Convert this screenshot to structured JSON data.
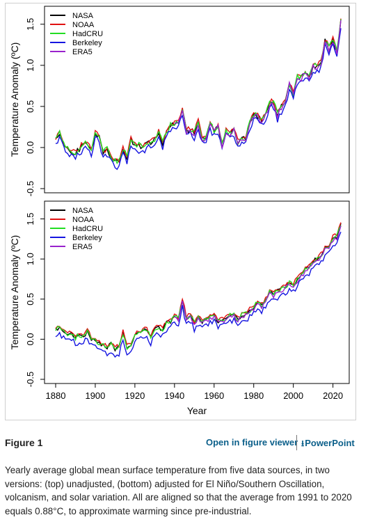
{
  "figure": {
    "label": "Figure 1",
    "open_viewer": "Open in figure viewer",
    "powerpoint": "PowerPoint",
    "download_icon": "download-icon",
    "caption": "Yearly average global mean surface temperature from five data sources, in two versions: (top) unadjusted, (bottom) adjusted for El Niño/Southern Oscillation, volcanism, and solar variation. All are aligned so that the average from 1991 to 2020 equals 0.88°C, to approximate warming since pre-industrial."
  },
  "chart_data": [
    {
      "type": "line",
      "title": "",
      "xlabel": "",
      "ylabel": "Temperature Anomaly (ºC)",
      "xlim": [
        1880,
        2024
      ],
      "ylim": [
        -0.5,
        1.6
      ],
      "yticks": [
        "-0.5",
        "0.0",
        "0.5",
        "1.0",
        "1.5"
      ],
      "grid": false,
      "legend": "top-left",
      "anchors": {
        "x": [
          1880,
          1882,
          1884,
          1886,
          1888,
          1890,
          1892,
          1894,
          1896,
          1898,
          1900,
          1902,
          1904,
          1906,
          1908,
          1910,
          1912,
          1914,
          1916,
          1918,
          1920,
          1922,
          1924,
          1926,
          1928,
          1930,
          1932,
          1934,
          1936,
          1938,
          1940,
          1942,
          1944,
          1946,
          1948,
          1950,
          1952,
          1954,
          1956,
          1958,
          1960,
          1962,
          1964,
          1966,
          1968,
          1970,
          1972,
          1974,
          1976,
          1978,
          1980,
          1982,
          1984,
          1986,
          1988,
          1990,
          1992,
          1994,
          1996,
          1998,
          2000,
          2002,
          2004,
          2006,
          2008,
          2010,
          2012,
          2014,
          2016,
          2018,
          2020,
          2022,
          2024
        ],
        "y": [
          0.1,
          0.16,
          0.05,
          -0.02,
          -0.05,
          -0.06,
          -0.02,
          0.04,
          0.05,
          -0.04,
          0.18,
          0.12,
          -0.08,
          -0.02,
          -0.12,
          -0.18,
          -0.18,
          -0.02,
          -0.12,
          0.1,
          0.02,
          0.02,
          0.0,
          0.05,
          0.06,
          0.1,
          0.18,
          0.05,
          0.18,
          0.26,
          0.28,
          0.3,
          0.48,
          0.2,
          0.22,
          0.18,
          0.3,
          0.1,
          0.12,
          0.28,
          0.2,
          0.26,
          0.02,
          0.2,
          0.16,
          0.22,
          0.06,
          0.12,
          0.1,
          0.3,
          0.4,
          0.38,
          0.32,
          0.4,
          0.54,
          0.55,
          0.4,
          0.5,
          0.58,
          0.78,
          0.65,
          0.85,
          0.85,
          0.92,
          0.84,
          1.0,
          0.98,
          1.04,
          1.3,
          1.2,
          1.3,
          1.15,
          1.55
        ]
      },
      "series": [
        {
          "name": "NASA",
          "color": "#000000",
          "start": 1880,
          "offset": 0.0,
          "amp": 0.03,
          "seed": 1
        },
        {
          "name": "NOAA",
          "color": "#e01010",
          "start": 1880,
          "offset": 0.02,
          "amp": 0.03,
          "seed": 2
        },
        {
          "name": "HadCRU",
          "color": "#22dd22",
          "start": 1880,
          "offset": 0.01,
          "amp": 0.035,
          "seed": 3
        },
        {
          "name": "Berkeley",
          "color": "#1515e0",
          "start": 1880,
          "offset": -0.06,
          "amp": 0.04,
          "seed": 4
        },
        {
          "name": "ERA5",
          "color": "#9922cc",
          "start": 1940,
          "offset": -0.01,
          "amp": 0.03,
          "seed": 5
        }
      ]
    },
    {
      "type": "line",
      "title": "",
      "xlabel": "Year",
      "ylabel": "Temperature Anomaly (ºC)",
      "xlim": [
        1880,
        2024
      ],
      "ylim": [
        -0.5,
        1.6
      ],
      "xticks": [
        "1880",
        "1900",
        "1920",
        "1940",
        "1960",
        "1980",
        "2000",
        "2020"
      ],
      "yticks": [
        "-0.5",
        "0.0",
        "0.5",
        "1.0",
        "1.5"
      ],
      "grid": false,
      "legend": "top-left",
      "anchors": {
        "x": [
          1880,
          1882,
          1884,
          1886,
          1888,
          1890,
          1892,
          1894,
          1896,
          1898,
          1900,
          1902,
          1904,
          1906,
          1908,
          1910,
          1912,
          1914,
          1916,
          1918,
          1920,
          1922,
          1924,
          1926,
          1928,
          1930,
          1932,
          1934,
          1936,
          1938,
          1940,
          1942,
          1944,
          1946,
          1948,
          1950,
          1952,
          1954,
          1956,
          1958,
          1960,
          1962,
          1964,
          1966,
          1968,
          1970,
          1972,
          1974,
          1976,
          1978,
          1980,
          1982,
          1984,
          1986,
          1988,
          1990,
          1992,
          1994,
          1996,
          1998,
          2000,
          2002,
          2004,
          2006,
          2008,
          2010,
          2012,
          2014,
          2016,
          2018,
          2020,
          2022,
          2024
        ],
        "y": [
          0.12,
          0.14,
          0.1,
          0.06,
          0.08,
          0.02,
          0.05,
          0.03,
          0.1,
          0.0,
          -0.02,
          -0.05,
          -0.08,
          -0.1,
          -0.06,
          -0.12,
          -0.1,
          0.08,
          -0.1,
          -0.08,
          0.05,
          0.08,
          0.1,
          0.12,
          0.02,
          0.12,
          0.15,
          0.12,
          0.2,
          0.22,
          0.3,
          0.25,
          0.5,
          0.25,
          0.3,
          0.2,
          0.28,
          0.22,
          0.25,
          0.28,
          0.3,
          0.22,
          0.24,
          0.25,
          0.3,
          0.32,
          0.24,
          0.3,
          0.32,
          0.36,
          0.4,
          0.46,
          0.42,
          0.48,
          0.58,
          0.56,
          0.6,
          0.62,
          0.66,
          0.7,
          0.68,
          0.74,
          0.8,
          0.86,
          0.9,
          0.98,
          1.0,
          1.04,
          1.14,
          1.16,
          1.26,
          1.28,
          1.44
        ]
      },
      "series": [
        {
          "name": "NASA",
          "color": "#000000",
          "start": 1880,
          "offset": 0.0,
          "amp": 0.025,
          "seed": 6
        },
        {
          "name": "NOAA",
          "color": "#e01010",
          "start": 1880,
          "offset": 0.02,
          "amp": 0.025,
          "seed": 7
        },
        {
          "name": "HadCRU",
          "color": "#22dd22",
          "start": 1880,
          "offset": 0.0,
          "amp": 0.03,
          "seed": 8
        },
        {
          "name": "Berkeley",
          "color": "#1515e0",
          "start": 1880,
          "offset": -0.08,
          "amp": 0.035,
          "seed": 9
        },
        {
          "name": "ERA5",
          "color": "#9922cc",
          "start": 1940,
          "offset": -0.02,
          "amp": 0.025,
          "seed": 10
        }
      ]
    }
  ]
}
